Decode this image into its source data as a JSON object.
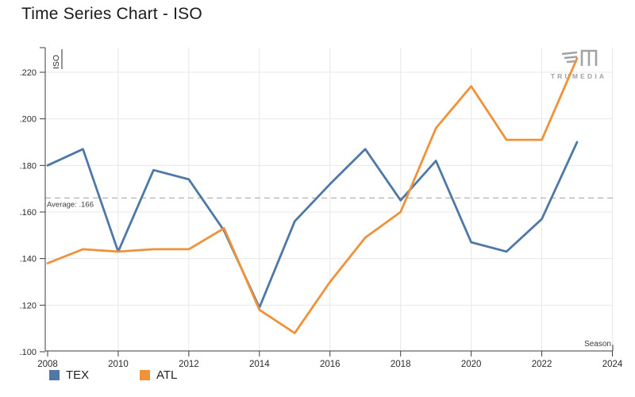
{
  "title": "Time Series Chart - ISO",
  "logo": {
    "text": "TRUMEDIA"
  },
  "legend": [
    {
      "label": "TEX",
      "color": "#4e79a7"
    },
    {
      "label": "ATL",
      "color": "#f0923a"
    }
  ],
  "chart_data": {
    "type": "line",
    "title": "Time Series Chart - ISO",
    "xlabel": "Season",
    "ylabel": "ISO",
    "x": [
      2008,
      2009,
      2010,
      2011,
      2012,
      2013,
      2014,
      2015,
      2016,
      2017,
      2018,
      2019,
      2020,
      2021,
      2022,
      2023
    ],
    "series": [
      {
        "name": "TEX",
        "color": "#4e79a7",
        "values": [
          0.18,
          0.187,
          0.143,
          0.178,
          0.174,
          0.152,
          0.119,
          0.156,
          0.172,
          0.187,
          0.165,
          0.182,
          0.147,
          0.143,
          0.157,
          0.19
        ]
      },
      {
        "name": "ATL",
        "color": "#f0923a",
        "values": [
          0.138,
          0.144,
          0.143,
          0.144,
          0.144,
          0.153,
          0.118,
          0.108,
          0.13,
          0.149,
          0.16,
          0.196,
          0.214,
          0.191,
          0.191,
          0.226
        ]
      }
    ],
    "average": {
      "value": 0.166,
      "label": "Average: .166"
    },
    "y_ticks": {
      "values": [
        0.1,
        0.12,
        0.14,
        0.16,
        0.18,
        0.2,
        0.22
      ],
      "labels": [
        ".100",
        ".120",
        ".140",
        ".160",
        ".180",
        ".200",
        ".220"
      ]
    },
    "x_ticks": [
      2008,
      2010,
      2012,
      2014,
      2016,
      2018,
      2020,
      2022,
      2024
    ],
    "ylim": [
      0.1,
      0.23
    ],
    "xlim": [
      2008,
      2024
    ],
    "grid": true,
    "legend_position": "bottom-left"
  }
}
